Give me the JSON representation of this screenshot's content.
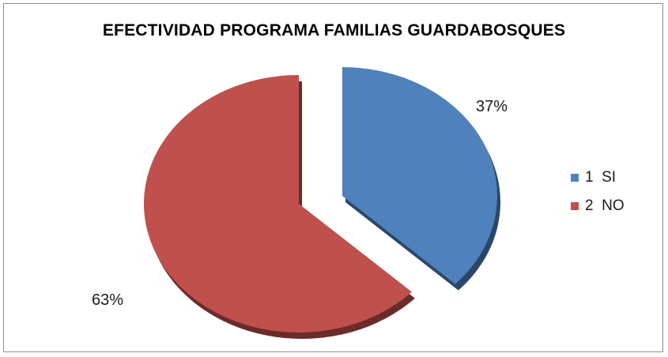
{
  "chart_data": {
    "type": "pie",
    "title": "EFECTIVIDAD PROGRAMA FAMILIAS GUARDABOSQUES",
    "slices": [
      {
        "label": "1  SI",
        "value": 37,
        "display": "37%",
        "color": "#4f81bd",
        "exploded": true
      },
      {
        "label": "2  NO",
        "value": 63,
        "display": "63%",
        "color": "#c0504d",
        "exploded": false
      }
    ],
    "legend_position": "right"
  }
}
